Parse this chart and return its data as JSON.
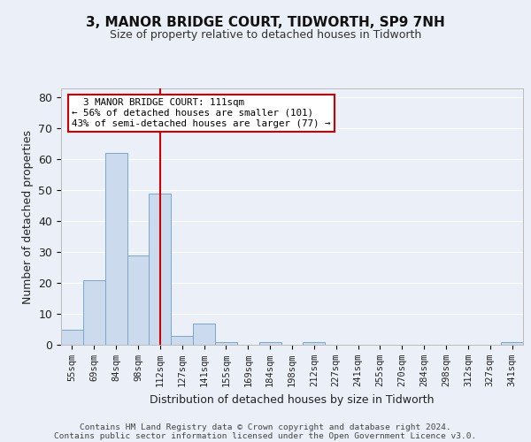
{
  "title": "3, MANOR BRIDGE COURT, TIDWORTH, SP9 7NH",
  "subtitle": "Size of property relative to detached houses in Tidworth",
  "xlabel": "Distribution of detached houses by size in Tidworth",
  "ylabel": "Number of detached properties",
  "bar_color": "#ccdaed",
  "bar_edge_color": "#7ba7cc",
  "categories": [
    "55sqm",
    "69sqm",
    "84sqm",
    "98sqm",
    "112sqm",
    "127sqm",
    "141sqm",
    "155sqm",
    "169sqm",
    "184sqm",
    "198sqm",
    "212sqm",
    "227sqm",
    "241sqm",
    "255sqm",
    "270sqm",
    "284sqm",
    "298sqm",
    "312sqm",
    "327sqm",
    "341sqm"
  ],
  "values": [
    5,
    21,
    62,
    29,
    49,
    3,
    7,
    1,
    0,
    1,
    0,
    1,
    0,
    0,
    0,
    0,
    0,
    0,
    0,
    0,
    1
  ],
  "vline_x": 4,
  "vline_color": "#cc0000",
  "annotation_text": "  3 MANOR BRIDGE COURT: 111sqm\n← 56% of detached houses are smaller (101)\n43% of semi-detached houses are larger (77) →",
  "annotation_box_color": "#ffffff",
  "annotation_box_edge": "#cc0000",
  "ylim": [
    0,
    83
  ],
  "yticks": [
    0,
    10,
    20,
    30,
    40,
    50,
    60,
    70,
    80
  ],
  "footer_line1": "Contains HM Land Registry data © Crown copyright and database right 2024.",
  "footer_line2": "Contains public sector information licensed under the Open Government Licence v3.0.",
  "background_color": "#eaeff8",
  "plot_background": "#eaeff8",
  "grid_color": "#ffffff",
  "title_fontsize": 11,
  "subtitle_fontsize": 9
}
